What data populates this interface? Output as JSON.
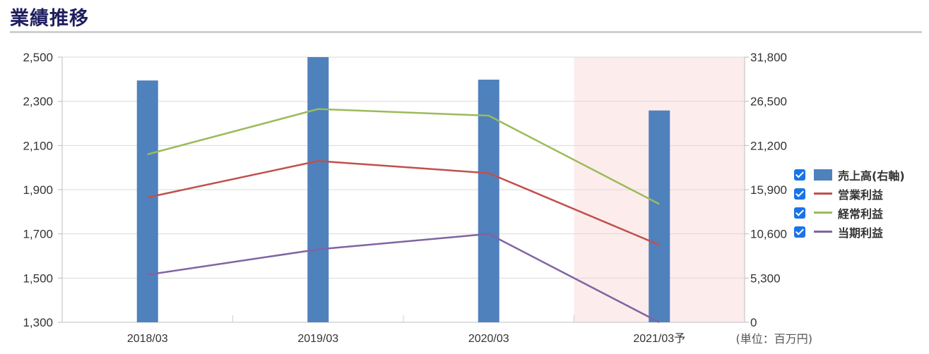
{
  "header": {
    "title": "業績推移"
  },
  "chart_data": {
    "type": "bar",
    "categories": [
      "2018/03",
      "2019/03",
      "2020/03",
      "2021/03予"
    ],
    "forecast_category": "2021/03予",
    "y_left": {
      "ticks": [
        "1,300",
        "1,500",
        "1,700",
        "1,900",
        "2,100",
        "2,300",
        "2,500"
      ],
      "ylim": [
        1300,
        2500
      ]
    },
    "y_right": {
      "ticks": [
        "0",
        "5,300",
        "10,600",
        "15,900",
        "21,200",
        "26,500",
        "31,800"
      ],
      "ylim": [
        0,
        31800
      ]
    },
    "unit_label": "(単位：百万円)",
    "series": [
      {
        "name": "売上高(右軸)",
        "type": "bar",
        "axis": "right",
        "color": "#4f81bd",
        "values": [
          29000,
          31800,
          29100,
          25400
        ]
      },
      {
        "name": "営業利益",
        "type": "line",
        "axis": "left",
        "color": "#c0504d",
        "values": [
          1865,
          2030,
          1975,
          1650
        ]
      },
      {
        "name": "経常利益",
        "type": "line",
        "axis": "left",
        "color": "#9bbb59",
        "values": [
          2060,
          2265,
          2235,
          1835
        ]
      },
      {
        "name": "当期利益",
        "type": "line",
        "axis": "left",
        "color": "#8064a2",
        "values": [
          1515,
          1630,
          1700,
          1300
        ]
      }
    ],
    "grid": true,
    "legend_position": "right"
  }
}
